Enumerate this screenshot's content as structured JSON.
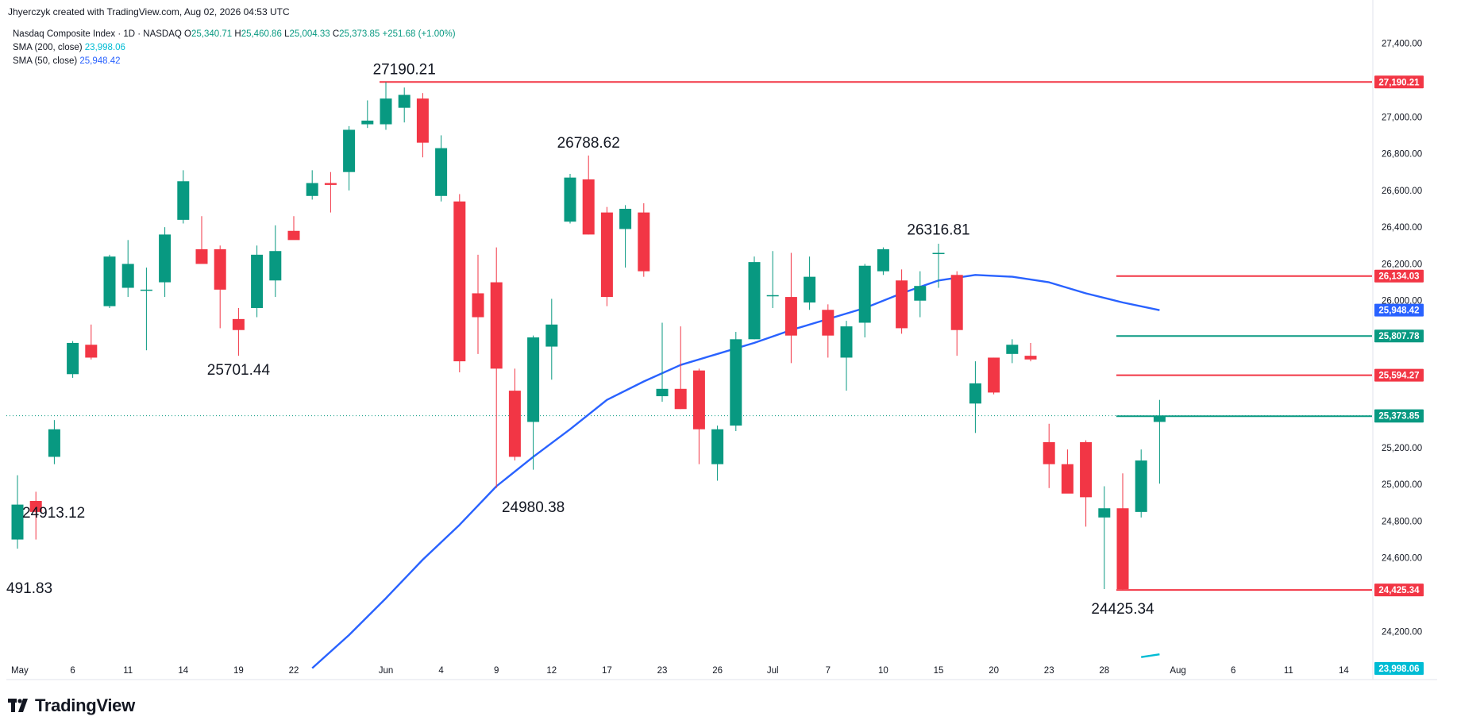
{
  "header": {
    "credit": "Jhyerczyk created with TradingView.com, Aug 02, 2026 04:53 UTC"
  },
  "legend": {
    "symbol": "Nasdaq Composite Index · 1D · NASDAQ",
    "o_label": "O",
    "o_value": "25,340.71",
    "h_label": "H",
    "h_value": "25,460.86",
    "l_label": "L",
    "l_value": "25,004.33",
    "c_label": "C",
    "c_value": "25,373.85",
    "change": "+251.68 (+1.00%)",
    "sma200_label": "SMA (200, close)",
    "sma200_value": "23,998.06",
    "sma50_label": "SMA (50, close)",
    "sma50_value": "25,948.42"
  },
  "footer": {
    "brand": "TradingView"
  },
  "colors": {
    "up": "#089981",
    "down": "#f23645",
    "sma50": "#2962ff",
    "sma200": "#00bcd4",
    "resistance": "#f23645",
    "support_green": "#089981"
  },
  "chart_data": {
    "type": "candlestick",
    "ylim": [
      24050,
      27550
    ],
    "y_ticks": [
      "27,400.00",
      "27,000.00",
      "26,800.00",
      "26,600.00",
      "26,400.00",
      "26,200.00",
      "26,000.00",
      "25,200.00",
      "25,000.00",
      "24,800.00",
      "24,600.00",
      "24,200.00"
    ],
    "y_tick_values": [
      27400,
      27000,
      26800,
      26600,
      26400,
      26200,
      26000,
      25200,
      25000,
      24800,
      24600,
      24200
    ],
    "x_labels": [
      {
        "label": "May",
        "i": 0
      },
      {
        "label": "6",
        "i": 3
      },
      {
        "label": "11",
        "i": 6
      },
      {
        "label": "14",
        "i": 9
      },
      {
        "label": "19",
        "i": 12
      },
      {
        "label": "22",
        "i": 15
      },
      {
        "label": "Jun",
        "i": 20
      },
      {
        "label": "4",
        "i": 23
      },
      {
        "label": "9",
        "i": 26
      },
      {
        "label": "12",
        "i": 29
      },
      {
        "label": "17",
        "i": 32
      },
      {
        "label": "23",
        "i": 35
      },
      {
        "label": "26",
        "i": 38
      },
      {
        "label": "Jul",
        "i": 41
      },
      {
        "label": "7",
        "i": 44
      },
      {
        "label": "10",
        "i": 47
      },
      {
        "label": "15",
        "i": 50
      },
      {
        "label": "20",
        "i": 53
      },
      {
        "label": "23",
        "i": 56
      },
      {
        "label": "28",
        "i": 59
      },
      {
        "label": "Aug",
        "i": 63
      },
      {
        "label": "6",
        "i": 66
      },
      {
        "label": "11",
        "i": 69
      },
      {
        "label": "14",
        "i": 72
      }
    ],
    "candles": [
      {
        "o": 24700,
        "h": 25050,
        "l": 24650,
        "c": 24890
      },
      {
        "o": 24910,
        "h": 24960,
        "l": 24700,
        "c": 24850
      },
      {
        "o": 25150,
        "h": 25350,
        "l": 25110,
        "c": 25300
      },
      {
        "o": 25600,
        "h": 25780,
        "l": 25580,
        "c": 25770
      },
      {
        "o": 25760,
        "h": 25870,
        "l": 25680,
        "c": 25690
      },
      {
        "o": 25970,
        "h": 26250,
        "l": 25960,
        "c": 26240
      },
      {
        "o": 26070,
        "h": 26330,
        "l": 26020,
        "c": 26200
      },
      {
        "o": 26060,
        "h": 26180,
        "l": 25730,
        "c": 26060
      },
      {
        "o": 26100,
        "h": 26400,
        "l": 26020,
        "c": 26360
      },
      {
        "o": 26440,
        "h": 26710,
        "l": 26420,
        "c": 26650
      },
      {
        "o": 26280,
        "h": 26460,
        "l": 26220,
        "c": 26200
      },
      {
        "o": 26280,
        "h": 26300,
        "l": 25850,
        "c": 26060
      },
      {
        "o": 25900,
        "h": 25960,
        "l": 25700,
        "c": 25840
      },
      {
        "o": 25960,
        "h": 26300,
        "l": 25910,
        "c": 26250
      },
      {
        "o": 26110,
        "h": 26410,
        "l": 26020,
        "c": 26270
      },
      {
        "o": 26380,
        "h": 26460,
        "l": 26360,
        "c": 26330
      },
      {
        "o": 26570,
        "h": 26710,
        "l": 26550,
        "c": 26640
      },
      {
        "o": 26640,
        "h": 26700,
        "l": 26480,
        "c": 26630
      },
      {
        "o": 26700,
        "h": 26950,
        "l": 26600,
        "c": 26930
      },
      {
        "o": 26960,
        "h": 27090,
        "l": 26940,
        "c": 26980
      },
      {
        "o": 26960,
        "h": 27190,
        "l": 26930,
        "c": 27100
      },
      {
        "o": 27050,
        "h": 27160,
        "l": 26970,
        "c": 27120
      },
      {
        "o": 27100,
        "h": 27130,
        "l": 26780,
        "c": 26860
      },
      {
        "o": 26570,
        "h": 26900,
        "l": 26540,
        "c": 26830
      },
      {
        "o": 26540,
        "h": 26580,
        "l": 25610,
        "c": 25670
      },
      {
        "o": 26040,
        "h": 26250,
        "l": 25710,
        "c": 25910
      },
      {
        "o": 26100,
        "h": 26290,
        "l": 24980,
        "c": 25630
      },
      {
        "o": 25510,
        "h": 25630,
        "l": 25130,
        "c": 25150
      },
      {
        "o": 25340,
        "h": 25810,
        "l": 25080,
        "c": 25800
      },
      {
        "o": 25750,
        "h": 26010,
        "l": 25570,
        "c": 25870
      },
      {
        "o": 26430,
        "h": 26690,
        "l": 26420,
        "c": 26670
      },
      {
        "o": 26660,
        "h": 26790,
        "l": 26360,
        "c": 26360
      },
      {
        "o": 26480,
        "h": 26510,
        "l": 25970,
        "c": 26020
      },
      {
        "o": 26390,
        "h": 26520,
        "l": 26180,
        "c": 26500
      },
      {
        "o": 26480,
        "h": 26530,
        "l": 26130,
        "c": 26160
      },
      {
        "o": 25480,
        "h": 25880,
        "l": 25450,
        "c": 25520
      },
      {
        "o": 25520,
        "h": 25860,
        "l": 25410,
        "c": 25410
      },
      {
        "o": 25620,
        "h": 25630,
        "l": 25110,
        "c": 25300
      },
      {
        "o": 25110,
        "h": 25320,
        "l": 25020,
        "c": 25300
      },
      {
        "o": 25320,
        "h": 25830,
        "l": 25290,
        "c": 25790
      },
      {
        "o": 25790,
        "h": 26240,
        "l": 25790,
        "c": 26210
      },
      {
        "o": 26030,
        "h": 26270,
        "l": 25960,
        "c": 26030
      },
      {
        "o": 26020,
        "h": 26260,
        "l": 25660,
        "c": 25810
      },
      {
        "o": 25990,
        "h": 26240,
        "l": 25950,
        "c": 26130
      },
      {
        "o": 25950,
        "h": 25980,
        "l": 25690,
        "c": 25810
      },
      {
        "o": 25690,
        "h": 25890,
        "l": 25510,
        "c": 25860
      },
      {
        "o": 25880,
        "h": 26200,
        "l": 25800,
        "c": 26190
      },
      {
        "o": 26160,
        "h": 26290,
        "l": 26140,
        "c": 26280
      },
      {
        "o": 26110,
        "h": 26170,
        "l": 25820,
        "c": 25850
      },
      {
        "o": 26000,
        "h": 26160,
        "l": 25910,
        "c": 26080
      },
      {
        "o": 26260,
        "h": 26310,
        "l": 26070,
        "c": 26260
      },
      {
        "o": 26140,
        "h": 26160,
        "l": 25700,
        "c": 25840
      },
      {
        "o": 25440,
        "h": 25670,
        "l": 25280,
        "c": 25550
      },
      {
        "o": 25690,
        "h": 25690,
        "l": 25490,
        "c": 25500
      },
      {
        "o": 25710,
        "h": 25790,
        "l": 25660,
        "c": 25760
      },
      {
        "o": 25700,
        "h": 25770,
        "l": 25670,
        "c": 25680
      },
      {
        "o": 25230,
        "h": 25330,
        "l": 24980,
        "c": 25110
      },
      {
        "o": 25110,
        "h": 25190,
        "l": 24980,
        "c": 24950
      },
      {
        "o": 25230,
        "h": 25240,
        "l": 24770,
        "c": 24930
      },
      {
        "o": 24820,
        "h": 24990,
        "l": 24430,
        "c": 24870
      },
      {
        "o": 24870,
        "h": 25060,
        "l": 24425,
        "c": 24430
      },
      {
        "o": 24850,
        "h": 25190,
        "l": 24820,
        "c": 25130
      },
      {
        "o": 25340,
        "h": 25460,
        "l": 25004,
        "c": 25374
      }
    ],
    "sma50": [
      {
        "i": 16,
        "v": 24000
      },
      {
        "i": 18,
        "v": 24180
      },
      {
        "i": 20,
        "v": 24380
      },
      {
        "i": 22,
        "v": 24590
      },
      {
        "i": 24,
        "v": 24780
      },
      {
        "i": 26,
        "v": 24990
      },
      {
        "i": 28,
        "v": 25150
      },
      {
        "i": 30,
        "v": 25300
      },
      {
        "i": 32,
        "v": 25460
      },
      {
        "i": 34,
        "v": 25560
      },
      {
        "i": 36,
        "v": 25650
      },
      {
        "i": 38,
        "v": 25710
      },
      {
        "i": 40,
        "v": 25770
      },
      {
        "i": 42,
        "v": 25840
      },
      {
        "i": 44,
        "v": 25900
      },
      {
        "i": 46,
        "v": 25960
      },
      {
        "i": 48,
        "v": 26040
      },
      {
        "i": 50,
        "v": 26110
      },
      {
        "i": 52,
        "v": 26140
      },
      {
        "i": 54,
        "v": 26130
      },
      {
        "i": 56,
        "v": 26100
      },
      {
        "i": 58,
        "v": 26040
      },
      {
        "i": 60,
        "v": 25990
      },
      {
        "i": 62,
        "v": 25948
      }
    ],
    "sma200_segment": [
      {
        "i": 61,
        "v": 24060
      },
      {
        "i": 62,
        "v": 24075
      }
    ],
    "hlines": [
      {
        "value": 27190.21,
        "label": "27,190.21",
        "color": "#f23645",
        "i_start": 20
      },
      {
        "value": 26134.03,
        "label": "26,134.03",
        "color": "#f23645",
        "i_start": 60
      },
      {
        "value": 25807.78,
        "label": "25,807.78",
        "color": "#089981",
        "i_start": 60
      },
      {
        "value": 25594.27,
        "label": "25,594.27",
        "color": "#f23645",
        "i_start": 60
      },
      {
        "value": 25371.08,
        "label": "25,371.08",
        "color": "#089981",
        "i_start": 60
      },
      {
        "value": 24425.34,
        "label": "24,425.34",
        "color": "#f23645",
        "i_start": 60
      }
    ],
    "price_badges": [
      {
        "value": 25948.42,
        "label": "25,948.42",
        "color": "#2962ff"
      },
      {
        "value": 25373.85,
        "label": "25,373.85",
        "color": "#089981"
      },
      {
        "value": 23998.06,
        "label": "23,998.06",
        "color": "#00bcd4"
      }
    ],
    "last_price": 25373.85,
    "annotations": [
      {
        "text": "27190.21",
        "i": 21,
        "v": 27190,
        "dy": -10
      },
      {
        "text": "26788.62",
        "i": 31,
        "v": 26790,
        "dy": -10
      },
      {
        "text": "26316.81",
        "i": 50,
        "v": 26317,
        "dy": -10
      },
      {
        "text": "25701.44",
        "i": 12,
        "v": 25701,
        "dy": 24
      },
      {
        "text": "24980.38",
        "i": 28,
        "v": 24980,
        "dy": 30
      },
      {
        "text": "24913.12",
        "i": 2,
        "v": 24913,
        "dy": 0
      },
      {
        "text": "24425.34",
        "i": 60,
        "v": 24425,
        "dy": 30
      },
      {
        "text": "491.83",
        "i": 0.5,
        "v": 24420,
        "dy": 0
      }
    ]
  }
}
